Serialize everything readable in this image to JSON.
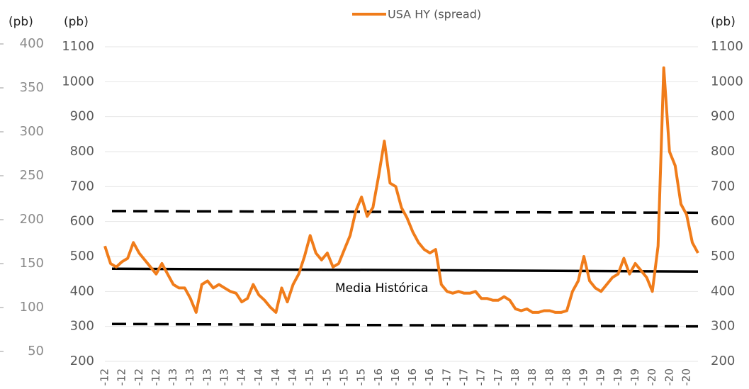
{
  "chart_data": {
    "type": "line",
    "legend_label": "USA HY (spread)",
    "ylabel": "(pb)",
    "y2label": "(pb)",
    "y3label": "(pb)",
    "ylim": [
      200,
      1100
    ],
    "yticks": [
      200,
      300,
      400,
      500,
      600,
      700,
      800,
      900,
      1000,
      1100
    ],
    "y2lim": [
      200,
      1100
    ],
    "y2ticks": [
      200,
      300,
      400,
      500,
      600,
      700,
      800,
      900,
      1000,
      1100
    ],
    "y3lim": [
      50,
      400
    ],
    "y3ticks": [
      50,
      100,
      150,
      200,
      250,
      300,
      350,
      400
    ],
    "grid": true,
    "categories": [
      "-12",
      null,
      null,
      "-12",
      null,
      null,
      "-12",
      null,
      null,
      "-12",
      null,
      null,
      "-13",
      null,
      null,
      "-13",
      null,
      null,
      "-13",
      null,
      null,
      "-13",
      null,
      null,
      "-14",
      null,
      null,
      "-14",
      null,
      null,
      "-14",
      null,
      null,
      "-14",
      null,
      null,
      "-15",
      null,
      null,
      "-15",
      null,
      null,
      "-15",
      null,
      null,
      "-15",
      null,
      null,
      "-16",
      null,
      null,
      "-16",
      null,
      null,
      "-16",
      null,
      null,
      "-16",
      null,
      null,
      "-17",
      null,
      null,
      "-17",
      null,
      null,
      "-17",
      null,
      null,
      "-17",
      null,
      null,
      "-18",
      null,
      null,
      "-18",
      null,
      null,
      "-18",
      null,
      null,
      "-18",
      null,
      null,
      "-19",
      null,
      null,
      "-19",
      null,
      null,
      "-19",
      null,
      null,
      "-19",
      null,
      null,
      "-20",
      null,
      null,
      "-20",
      null,
      null,
      "-20",
      null,
      null
    ],
    "series": [
      {
        "name": "USA HY (spread)",
        "color": "#f07c1a",
        "values": [
          530,
          480,
          470,
          485,
          495,
          540,
          510,
          490,
          470,
          450,
          480,
          450,
          420,
          410,
          410,
          380,
          340,
          420,
          430,
          410,
          420,
          410,
          400,
          395,
          370,
          380,
          420,
          390,
          375,
          355,
          340,
          410,
          370,
          420,
          450,
          500,
          560,
          510,
          490,
          510,
          470,
          480,
          520,
          560,
          630,
          670,
          615,
          640,
          730,
          830,
          710,
          700,
          640,
          610,
          570,
          540,
          520,
          510,
          520,
          420,
          400,
          395,
          400,
          395,
          395,
          400,
          380,
          380,
          375,
          375,
          385,
          375,
          350,
          345,
          350,
          340,
          340,
          345,
          345,
          340,
          340,
          345,
          400,
          430,
          500,
          430,
          410,
          400,
          420,
          440,
          450,
          495,
          450,
          480,
          460,
          440,
          400,
          530,
          1040,
          800,
          760,
          650,
          620,
          540,
          510
        ]
      }
    ],
    "reference_lines": [
      {
        "values": [
          630,
          625
        ],
        "style": "dashed"
      },
      {
        "values": [
          465,
          457
        ],
        "style": "solid",
        "label": "Media Histórica"
      },
      {
        "values": [
          307,
          300
        ],
        "style": "dashed"
      }
    ]
  }
}
